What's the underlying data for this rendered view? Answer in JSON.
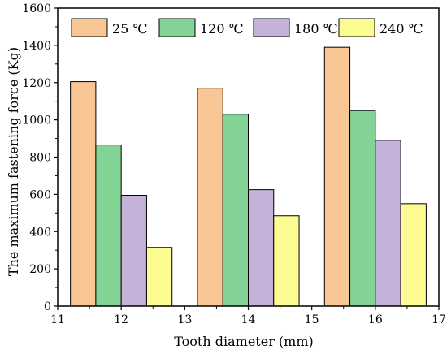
{
  "chart_data": {
    "type": "bar",
    "xlabel": "Tooth diameter (mm)",
    "ylabel": "The maximum fastening force (Kg)",
    "xlim": [
      11,
      17
    ],
    "ylim": [
      0,
      1600
    ],
    "x_ticks": [
      "11",
      "12",
      "13",
      "14",
      "15",
      "16",
      "17"
    ],
    "y_ticks": [
      "0",
      "200",
      "400",
      "600",
      "800",
      "1000",
      "1200",
      "1400",
      "1600"
    ],
    "grid": false,
    "legend_position": "top",
    "groups": [
      {
        "label": "12",
        "x": 12
      },
      {
        "label": "14",
        "x": 14
      },
      {
        "label": "16",
        "x": 16
      }
    ],
    "series": [
      {
        "name": "25 ℃",
        "color": "#F9C795",
        "values": [
          1205,
          1170,
          1390
        ]
      },
      {
        "name": "120 ℃",
        "color": "#84D396",
        "values": [
          865,
          1030,
          1050
        ]
      },
      {
        "name": "180 ℃",
        "color": "#C6B2D9",
        "values": [
          595,
          625,
          890
        ]
      },
      {
        "name": "240 ℃",
        "color": "#FCFC93",
        "values": [
          315,
          485,
          550
        ]
      }
    ]
  }
}
